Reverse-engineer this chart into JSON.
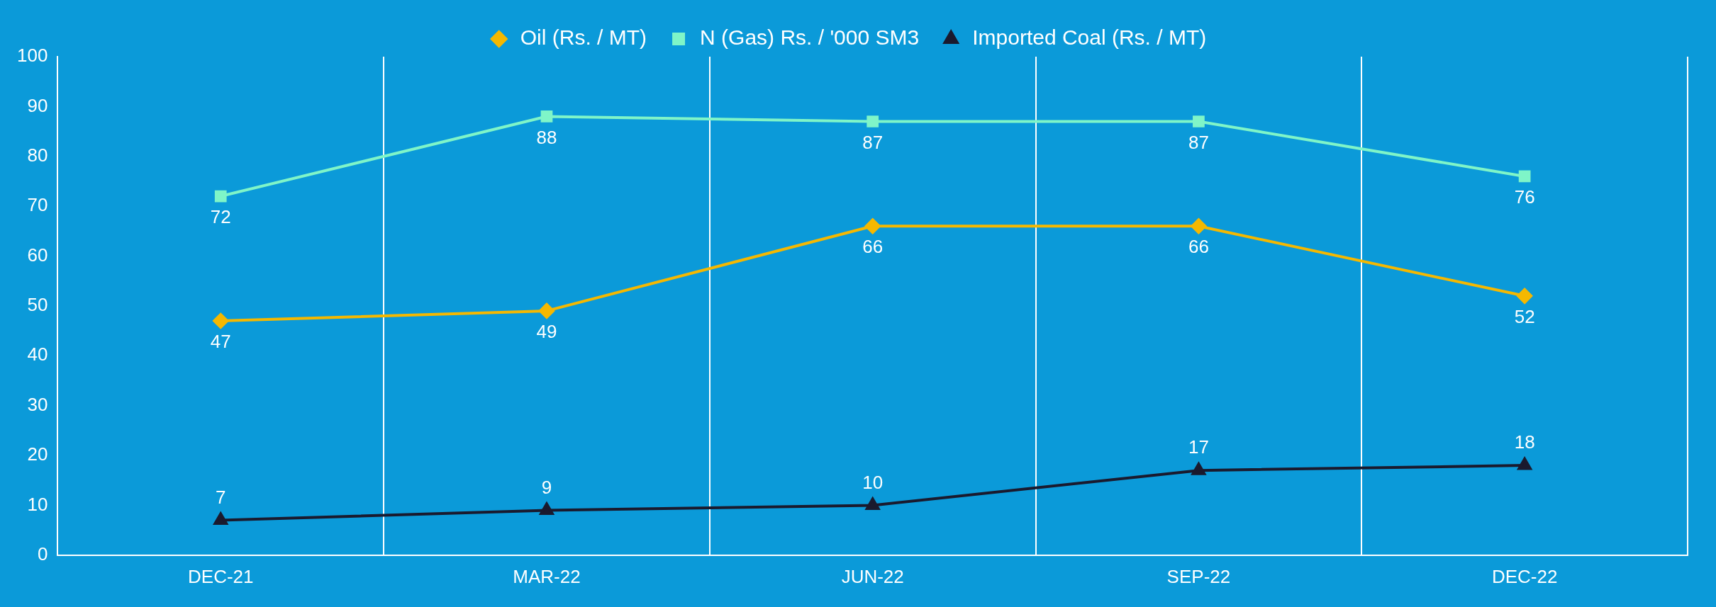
{
  "chart_data": {
    "type": "line",
    "categories": [
      "DEC-21",
      "MAR-22",
      "JUN-22",
      "SEP-22",
      "DEC-22"
    ],
    "series": [
      {
        "name": "Oil (Rs. / MT)",
        "color": "#f5b800",
        "marker": "diamond",
        "values": [
          47,
          49,
          66,
          66,
          52
        ]
      },
      {
        "name": "N (Gas) Rs. / '000 SM3",
        "color": "#7ff5c8",
        "marker": "square",
        "values": [
          72,
          88,
          87,
          87,
          76
        ]
      },
      {
        "name": "Imported Coal (Rs. / MT)",
        "color": "#1a1a2e",
        "marker": "triangle",
        "values": [
          7,
          9,
          10,
          17,
          18
        ]
      }
    ],
    "ylim": [
      0,
      100
    ],
    "yticks": [
      0,
      10,
      20,
      30,
      40,
      50,
      60,
      70,
      80,
      90,
      100
    ],
    "grid": "x",
    "legend": "top",
    "data_labels": true,
    "line_style": "solid"
  }
}
